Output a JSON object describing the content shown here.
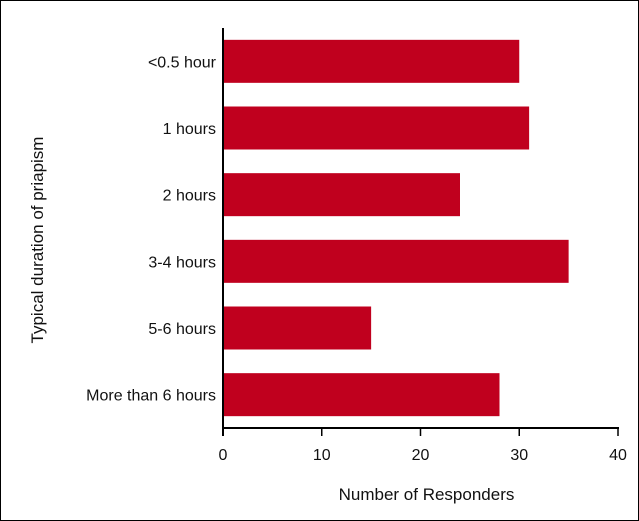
{
  "chart_data": {
    "type": "bar",
    "orientation": "horizontal",
    "categories": [
      "<0.5 hour",
      "1 hours",
      "2 hours",
      "3-4 hours",
      "5-6 hours",
      "More than 6 hours"
    ],
    "series": [
      {
        "values": [
          30,
          31,
          24,
          35,
          15,
          28
        ]
      }
    ],
    "xlabel": "Number of Responders",
    "ylabel": "Typical duration of priapism",
    "xlim": [
      0,
      40
    ],
    "xticks": [
      "0",
      "10",
      "20",
      "30",
      "40"
    ],
    "grid": false,
    "legend": "none",
    "bar_color": "#c0001e"
  }
}
